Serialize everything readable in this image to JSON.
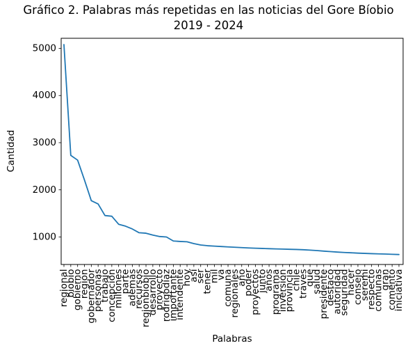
{
  "chart_data": {
    "type": "line",
    "title": "Gráfico 2. Palabras más repetidas en las noticias del Gore Bíobio",
    "subtitle": "2019 - 2024",
    "xlabel": "Palabras",
    "ylabel": "Cantidad",
    "legend": null,
    "grid": false,
    "line_color": "#1f77b4",
    "yticks": [
      1000,
      2000,
      3000,
      4000,
      5000
    ],
    "ylim": [
      417,
      5214
    ],
    "categories": [
      "regional",
      "biobio",
      "gobierno",
      "región",
      "gobernador",
      "personas",
      "trabajo",
      "concepción",
      "millones",
      "parte",
      "además",
      "recursos",
      "regionbiobio",
      "desarrollo",
      "proyecto",
      "rodrigodíaz",
      "importante",
      "intendente",
      "hoy",
      "así",
      "ser",
      "tener",
      "mil",
      "va",
      "comuna",
      "regionales",
      "año",
      "poder",
      "proyectos",
      "junto",
      "años",
      "programa",
      "inversión",
      "provincia",
      "chile",
      "través",
      "que",
      "salud",
      "presidente",
      "destacó",
      "autoridad",
      "seguridad",
      "hacer",
      "consejo",
      "seremi",
      "respecto",
      "comunas",
      "gran",
      "comentó",
      "iniciativa"
    ],
    "values": [
      5080,
      2730,
      2630,
      2210,
      1770,
      1700,
      1455,
      1440,
      1270,
      1230,
      1170,
      1090,
      1080,
      1040,
      1010,
      1000,
      915,
      905,
      898,
      860,
      830,
      815,
      806,
      798,
      790,
      782,
      775,
      768,
      762,
      757,
      752,
      747,
      743,
      739,
      735,
      730,
      722,
      712,
      700,
      690,
      680,
      672,
      665,
      658,
      652,
      647,
      642,
      638,
      633,
      628
    ]
  }
}
